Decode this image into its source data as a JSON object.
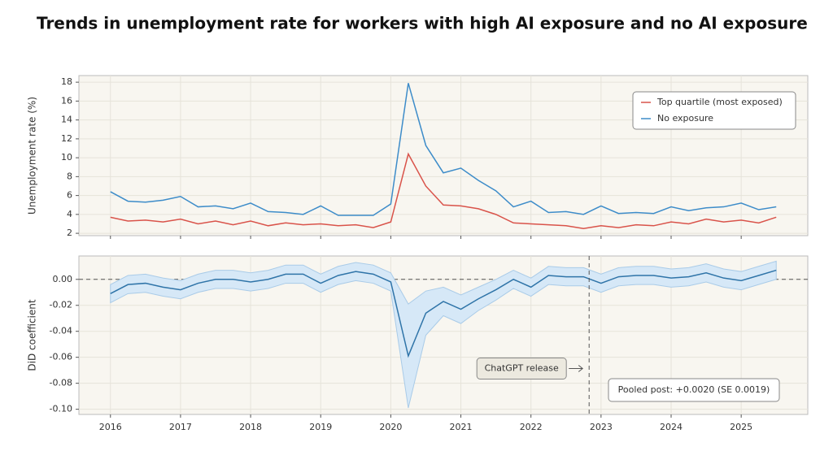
{
  "title": "Trends in unemployment rate for workers with high AI exposure and no AI exposure",
  "chart_data": [
    {
      "type": "line",
      "y_label": "Unemployment rate (%)",
      "x": [
        2016,
        2016.25,
        2016.5,
        2016.75,
        2017,
        2017.25,
        2017.5,
        2017.75,
        2018,
        2018.25,
        2018.5,
        2018.75,
        2019,
        2019.25,
        2019.5,
        2019.75,
        2020,
        2020.25,
        2020.5,
        2020.75,
        2021,
        2021.25,
        2021.5,
        2021.75,
        2022,
        2022.25,
        2022.5,
        2022.75,
        2023,
        2023.25,
        2023.5,
        2023.75,
        2024,
        2024.25,
        2024.5,
        2024.75,
        2025,
        2025.25,
        2025.5
      ],
      "series": [
        {
          "name": "Top quartile (most exposed)",
          "color": "#d9534a",
          "values": [
            3.7,
            3.3,
            3.4,
            3.2,
            3.5,
            3.0,
            3.3,
            2.9,
            3.3,
            2.8,
            3.1,
            2.9,
            3.0,
            2.8,
            2.9,
            2.6,
            3.2,
            10.4,
            7.0,
            5.0,
            4.9,
            4.6,
            4.0,
            3.1,
            3.0,
            2.9,
            2.8,
            2.5,
            2.8,
            2.6,
            2.9,
            2.8,
            3.2,
            3.0,
            3.5,
            3.2,
            3.4,
            3.1,
            3.7
          ]
        },
        {
          "name": "No exposure",
          "color": "#3d8cc9",
          "values": [
            6.4,
            5.4,
            5.3,
            5.5,
            5.9,
            4.8,
            4.9,
            4.6,
            5.2,
            4.3,
            4.2,
            4.0,
            4.9,
            3.9,
            3.9,
            3.9,
            5.1,
            17.9,
            11.3,
            8.4,
            8.9,
            7.6,
            6.5,
            4.8,
            5.4,
            4.2,
            4.3,
            4.0,
            4.9,
            4.1,
            4.2,
            4.1,
            4.8,
            4.4,
            4.7,
            4.8,
            5.2,
            4.5,
            4.8
          ]
        }
      ],
      "xlim": [
        2015.55,
        2025.95
      ],
      "xticks": [
        2016,
        2017,
        2018,
        2019,
        2020,
        2021,
        2022,
        2023,
        2024,
        2025
      ],
      "ylim": [
        1.75,
        18.7
      ],
      "yticks": [
        2,
        4,
        6,
        8,
        10,
        12,
        14,
        16,
        18
      ],
      "grid": true,
      "legend": "upper right"
    },
    {
      "type": "line",
      "y_label": "DiD coefficient",
      "x": [
        2016,
        2016.25,
        2016.5,
        2016.75,
        2017,
        2017.25,
        2017.5,
        2017.75,
        2018,
        2018.25,
        2018.5,
        2018.75,
        2019,
        2019.25,
        2019.5,
        2019.75,
        2020,
        2020.25,
        2020.5,
        2020.75,
        2021,
        2021.25,
        2021.5,
        2021.75,
        2022,
        2022.25,
        2022.5,
        2022.75,
        2023,
        2023.25,
        2023.5,
        2023.75,
        2024,
        2024.25,
        2024.5,
        2024.75,
        2025,
        2025.25,
        2025.5
      ],
      "series": [
        {
          "color": "#2f74a8",
          "band_color": "#d6e8f7",
          "values": [
            -0.011,
            -0.004,
            -0.003,
            -0.006,
            -0.008,
            -0.003,
            0.0,
            0.0,
            -0.002,
            0.0,
            0.004,
            0.004,
            -0.003,
            0.003,
            0.006,
            0.004,
            -0.002,
            -0.059,
            -0.026,
            -0.017,
            -0.023,
            -0.015,
            -0.008,
            0.0,
            -0.006,
            0.003,
            0.002,
            0.002,
            -0.003,
            0.002,
            0.003,
            0.003,
            0.001,
            0.002,
            0.005,
            0.001,
            -0.001,
            0.003,
            0.007
          ],
          "errors": [
            0.007,
            0.007,
            0.007,
            0.007,
            0.007,
            0.007,
            0.007,
            0.007,
            0.007,
            0.007,
            0.007,
            0.007,
            0.007,
            0.007,
            0.007,
            0.007,
            0.007,
            0.04,
            0.017,
            0.011,
            0.011,
            0.009,
            0.008,
            0.007,
            0.007,
            0.007,
            0.007,
            0.007,
            0.007,
            0.007,
            0.007,
            0.007,
            0.007,
            0.007,
            0.007,
            0.007,
            0.007,
            0.007,
            0.007
          ]
        }
      ],
      "xlim": [
        2015.55,
        2025.95
      ],
      "xticks": [
        2016,
        2017,
        2018,
        2019,
        2020,
        2021,
        2022,
        2023,
        2024,
        2025
      ],
      "ylim": [
        -0.104,
        0.018
      ],
      "yticks": [
        {
          "value": -0.1,
          "label": "-0.10"
        },
        -0.08,
        -0.06,
        -0.04,
        -0.02,
        {
          "value": 0,
          "label": "0.00"
        }
      ],
      "grid": true,
      "reference_y": 0,
      "event_x": 2022.83,
      "event_label": "ChatGPT release",
      "note": "Pooled post: +0.0020 (SE 0.0019)"
    }
  ]
}
